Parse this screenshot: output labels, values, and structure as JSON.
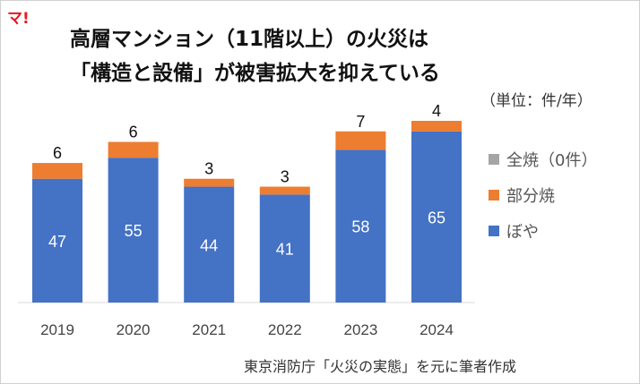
{
  "logo": "マ!",
  "title_line1": "高層マンション（11階以上）の火災は",
  "title_line2": "「構造と設備」が被害拡大を抑えている",
  "unit": "（単位：件/年）",
  "source": "東京消防庁「火災の実態」を元に筆者作成",
  "chart_data": {
    "type": "bar",
    "stacked": true,
    "categories": [
      "2019",
      "2020",
      "2021",
      "2022",
      "2023",
      "2024"
    ],
    "series": [
      {
        "name": "ぼや",
        "values": [
          47,
          55,
          44,
          41,
          58,
          65
        ],
        "color": "#4472c4"
      },
      {
        "name": "部分焼",
        "values": [
          6,
          6,
          3,
          3,
          7,
          4
        ],
        "color": "#ed7d31"
      },
      {
        "name": "全焼（0件）",
        "values": [
          0,
          0,
          0,
          0,
          0,
          0
        ],
        "color": "#a5a5a5"
      }
    ],
    "ylim": [
      0,
      69
    ],
    "grid": false,
    "legend_position": "right"
  }
}
